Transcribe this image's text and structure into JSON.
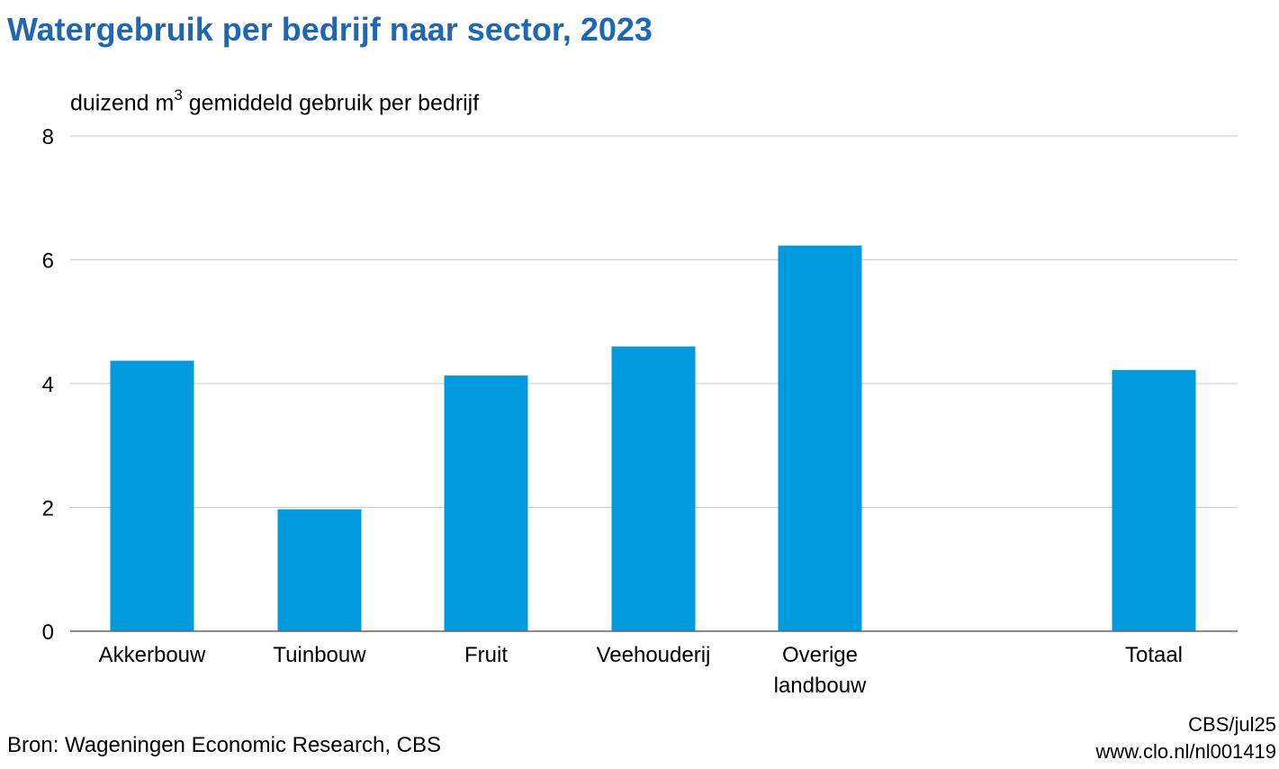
{
  "header": {
    "title": "Watergebruik per bedrijf naar sector, 2023"
  },
  "axis": {
    "ylabel_prefix": "duizend m",
    "ylabel_superscript": "3",
    "ylabel_suffix": " gemiddeld gebruik per bedrijf"
  },
  "footer": {
    "source": "Bron: Wageningen Economic Research, CBS",
    "credit": "CBS/jul25",
    "url": "www.clo.nl/nl001419"
  },
  "colors": {
    "title": "#1f66b3",
    "bar": "#009ade",
    "grid": "#c8c8c8",
    "axis": "#666666"
  },
  "chart_data": {
    "type": "bar",
    "categories": [
      "Akkerbouw",
      "Tuinbouw",
      "Fruit",
      "Veehouderij",
      "Overige landbouw",
      "Totaal"
    ],
    "category_lines": [
      [
        "Akkerbouw"
      ],
      [
        "Tuinbouw"
      ],
      [
        "Fruit"
      ],
      [
        "Veehouderij"
      ],
      [
        "Overige",
        "landbouw"
      ],
      [
        "Totaal"
      ]
    ],
    "values": [
      4.37,
      1.97,
      4.13,
      4.6,
      6.23,
      4.22
    ],
    "ylim": [
      0,
      8
    ],
    "yticks": [
      0,
      2,
      4,
      6,
      8
    ],
    "ytick_labels": [
      "0",
      "2",
      "4",
      "6",
      "8"
    ],
    "grid": true,
    "title": "Watergebruik per bedrijf naar sector, 2023",
    "xlabel": "",
    "ylabel": "duizend m3 gemiddeld gebruik per bedrijf"
  }
}
